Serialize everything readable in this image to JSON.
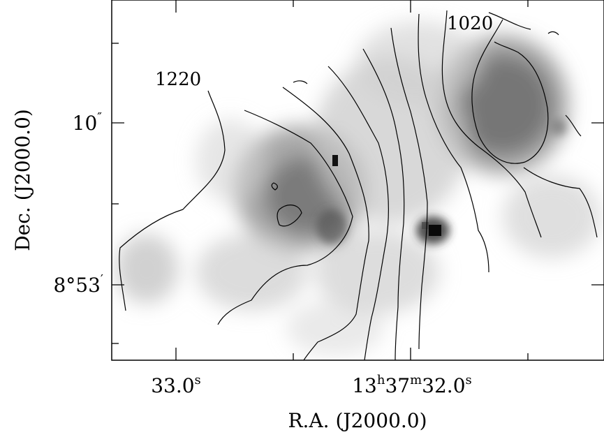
{
  "chart_data": {
    "type": "contour",
    "title": "",
    "xlabel": "R.A. (J2000.0)",
    "ylabel": "Dec. (J2000.0)",
    "x_ticks": [
      {
        "main": "33.0",
        "sup": "s"
      },
      {
        "main": "13",
        "sup": "h",
        "main2": "37",
        "sup2": "m",
        "main3": "32.0",
        "sup3": "s"
      }
    ],
    "y_ticks": [
      {
        "main": "10",
        "sup": "″"
      },
      {
        "main": "8°53",
        "sup": "′"
      }
    ],
    "contour_labels": [
      "1220",
      "1020"
    ],
    "contour_levels_kms": [
      1020,
      1045,
      1070,
      1095,
      1120,
      1145,
      1170,
      1195,
      1220
    ],
    "image_colormap": "grayscale (white = low, black = high)",
    "line_color": "#000000"
  }
}
